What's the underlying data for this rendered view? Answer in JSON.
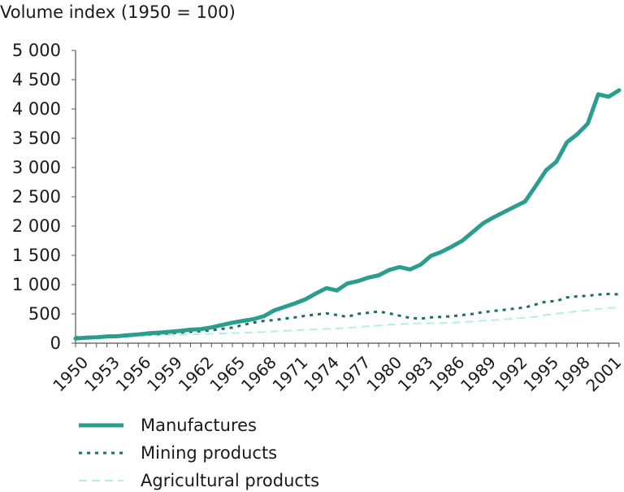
{
  "chart_data": {
    "type": "line",
    "title": "",
    "xlabel": "",
    "ylabel": "Volume index (1950 = 100)",
    "ylim": [
      0,
      5000
    ],
    "xlim": [
      1950,
      2002
    ],
    "y_ticks": [
      0,
      500,
      1000,
      1500,
      2000,
      2500,
      3000,
      3500,
      4000,
      4500,
      5000
    ],
    "y_tick_labels": [
      "0",
      "500",
      "1 000",
      "1 500",
      "2 000",
      "2 500",
      "3 000",
      "3 500",
      "4 000",
      "4 500",
      "5 000"
    ],
    "x_ticks": [
      1950,
      1953,
      1956,
      1959,
      1962,
      1965,
      1968,
      1971,
      1974,
      1977,
      1980,
      1983,
      1986,
      1989,
      1992,
      1995,
      1998,
      2001
    ],
    "x_tick_labels": [
      "1950",
      "1953",
      "1956",
      "1959",
      "1962",
      "1965",
      "1968",
      "1971",
      "1974",
      "1977",
      "1980",
      "1983",
      "1986",
      "1989",
      "1992",
      "1995",
      "1998",
      "2001"
    ],
    "grid": false,
    "legend_position": "bottom",
    "x": [
      1950,
      1951,
      1952,
      1953,
      1954,
      1955,
      1956,
      1957,
      1958,
      1959,
      1960,
      1961,
      1962,
      1963,
      1964,
      1965,
      1966,
      1967,
      1968,
      1969,
      1970,
      1971,
      1972,
      1973,
      1974,
      1975,
      1976,
      1977,
      1978,
      1979,
      1980,
      1981,
      1982,
      1983,
      1984,
      1985,
      1986,
      1987,
      1988,
      1989,
      1990,
      1991,
      1992,
      1993,
      1994,
      1995,
      1996,
      1997,
      1998,
      1999,
      2000,
      2001,
      2002
    ],
    "series": [
      {
        "name": "Manufactures",
        "color": "#2a9d8f",
        "style": "solid",
        "values": [
          80,
          95,
          100,
          115,
          120,
          135,
          150,
          170,
          180,
          195,
          210,
          230,
          240,
          270,
          310,
          350,
          380,
          410,
          460,
          560,
          620,
          680,
          750,
          850,
          940,
          900,
          1020,
          1060,
          1120,
          1160,
          1250,
          1300,
          1260,
          1340,
          1490,
          1560,
          1650,
          1750,
          1900,
          2050,
          2150,
          2240,
          2330,
          2420,
          2680,
          2950,
          3100,
          3430,
          3570,
          3750,
          4250,
          4210,
          4320
        ]
      },
      {
        "name": "Mining products",
        "color": "#1a6e63",
        "style": "dotted",
        "values": [
          100,
          103,
          106,
          110,
          114,
          122,
          138,
          150,
          158,
          170,
          180,
          195,
          205,
          220,
          245,
          265,
          310,
          350,
          380,
          395,
          420,
          440,
          470,
          490,
          510,
          480,
          450,
          500,
          520,
          540,
          510,
          470,
          430,
          420,
          440,
          450,
          460,
          480,
          500,
          530,
          550,
          570,
          590,
          610,
          660,
          710,
          720,
          780,
          800,
          810,
          830,
          840,
          835
        ]
      },
      {
        "name": "Agricultural products",
        "color": "#b3f0e4",
        "style": "dashed",
        "values": [
          100,
          104,
          108,
          112,
          117,
          121,
          125,
          130,
          135,
          140,
          145,
          150,
          155,
          160,
          166,
          172,
          178,
          185,
          192,
          200,
          210,
          220,
          228,
          236,
          244,
          250,
          262,
          275,
          290,
          302,
          315,
          325,
          335,
          340,
          342,
          345,
          350,
          360,
          370,
          385,
          395,
          405,
          420,
          435,
          450,
          480,
          505,
          525,
          545,
          560,
          585,
          600,
          610
        ]
      }
    ]
  }
}
